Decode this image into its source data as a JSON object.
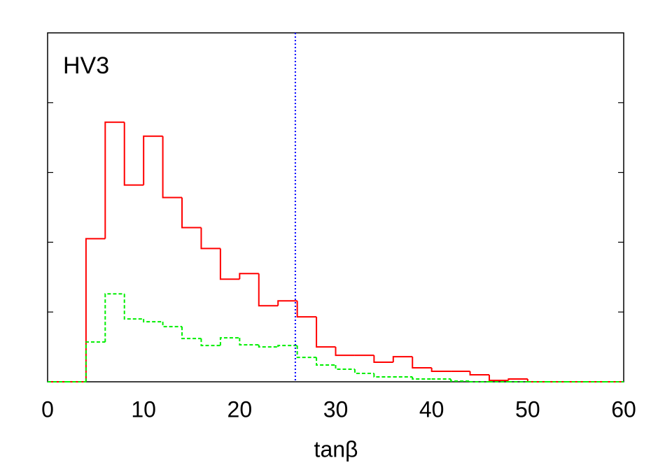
{
  "chart_data": {
    "type": "histogram",
    "annotation": "HV3",
    "x_label": "tanβ",
    "bins": [
      0,
      2,
      4,
      6,
      8,
      10,
      12,
      14,
      16,
      18,
      20,
      22,
      24,
      26,
      28,
      30,
      32,
      34,
      36,
      38,
      40,
      42,
      44,
      46,
      48,
      50,
      52,
      54,
      56,
      58,
      60
    ],
    "series": [
      {
        "color": "#ff0000",
        "dash": false,
        "values": [
          0,
          0,
          2.05,
          3.72,
          2.82,
          3.52,
          2.64,
          2.21,
          1.91,
          1.47,
          1.55,
          1.09,
          1.16,
          0.93,
          0.5,
          0.38,
          0.38,
          0.28,
          0.36,
          0.2,
          0.15,
          0.15,
          0.1,
          0.02,
          0.04,
          0,
          0,
          0,
          0,
          0
        ]
      },
      {
        "color": "#00ee00",
        "dash": true,
        "values": [
          0,
          0,
          0.57,
          1.26,
          0.9,
          0.86,
          0.79,
          0.62,
          0.52,
          0.63,
          0.53,
          0.5,
          0.52,
          0.35,
          0.24,
          0.18,
          0.12,
          0.07,
          0.07,
          0.04,
          0.04,
          0.01,
          0,
          0,
          0,
          0,
          0,
          0,
          0,
          0
        ]
      }
    ],
    "vline": {
      "x": 25.8,
      "color": "#0000ff"
    },
    "xlim": [
      0,
      60
    ],
    "xticks": [
      0,
      10,
      20,
      30,
      40,
      50,
      60
    ],
    "ylim": [
      0,
      5
    ],
    "yticks": [
      1,
      2,
      3,
      4
    ]
  }
}
